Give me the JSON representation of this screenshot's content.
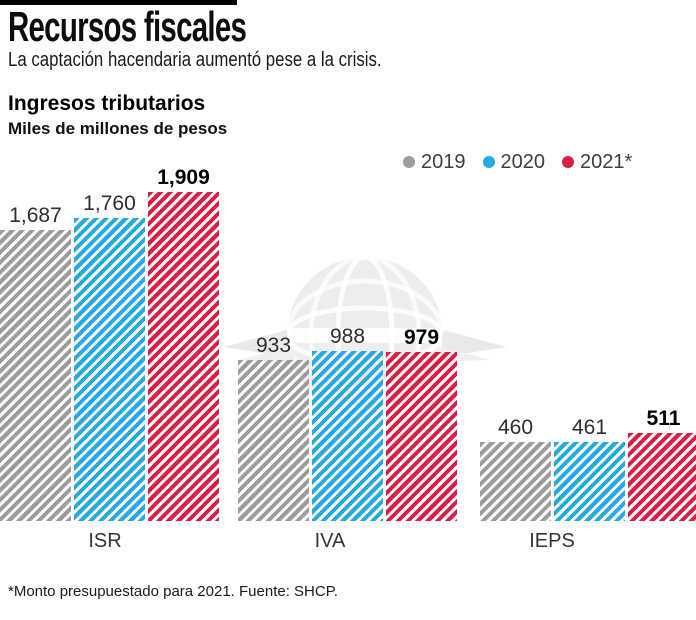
{
  "poster": {
    "headline": "Recursos fiscales",
    "subheadline": "La captación hacendaria aumentó pese a la crisis.",
    "chart_title": "Ingresos tributarios",
    "unit_label": "Miles de millones de pesos",
    "footnote": "*Monto presupuestado para 2021. Fuente: SHCP."
  },
  "colors": {
    "headline_text": "#0d0d0d",
    "gray_2019": "#9c9c9c",
    "blue_2020": "#26a9e0",
    "red_2021": "#d81e45",
    "watermark_gray": "#ededed",
    "background": "#ffffff"
  },
  "chart_data": {
    "type": "bar",
    "title": "Ingresos tributarios",
    "subtitle": "Miles de millones de pesos",
    "categories": [
      "ISR",
      "IVA",
      "IEPS"
    ],
    "series": [
      {
        "name": "2019",
        "color": "#9c9c9c",
        "emphasis": false,
        "values": [
          1687,
          933,
          460
        ],
        "labels": [
          "1,687",
          "933",
          "460"
        ]
      },
      {
        "name": "2020",
        "color": "#26a9e0",
        "emphasis": false,
        "values": [
          1760,
          988,
          461
        ],
        "labels": [
          "1,760",
          "988",
          "461"
        ]
      },
      {
        "name": "2021*",
        "color": "#d81e45",
        "emphasis": true,
        "values": [
          1909,
          979,
          511
        ],
        "labels": [
          "1,909",
          "979",
          "511"
        ]
      }
    ],
    "ylim": [
      0,
      2040
    ],
    "grid": false,
    "axis_line": false,
    "legend_position": "top-right",
    "bar_style": "diagonal-stripes"
  }
}
